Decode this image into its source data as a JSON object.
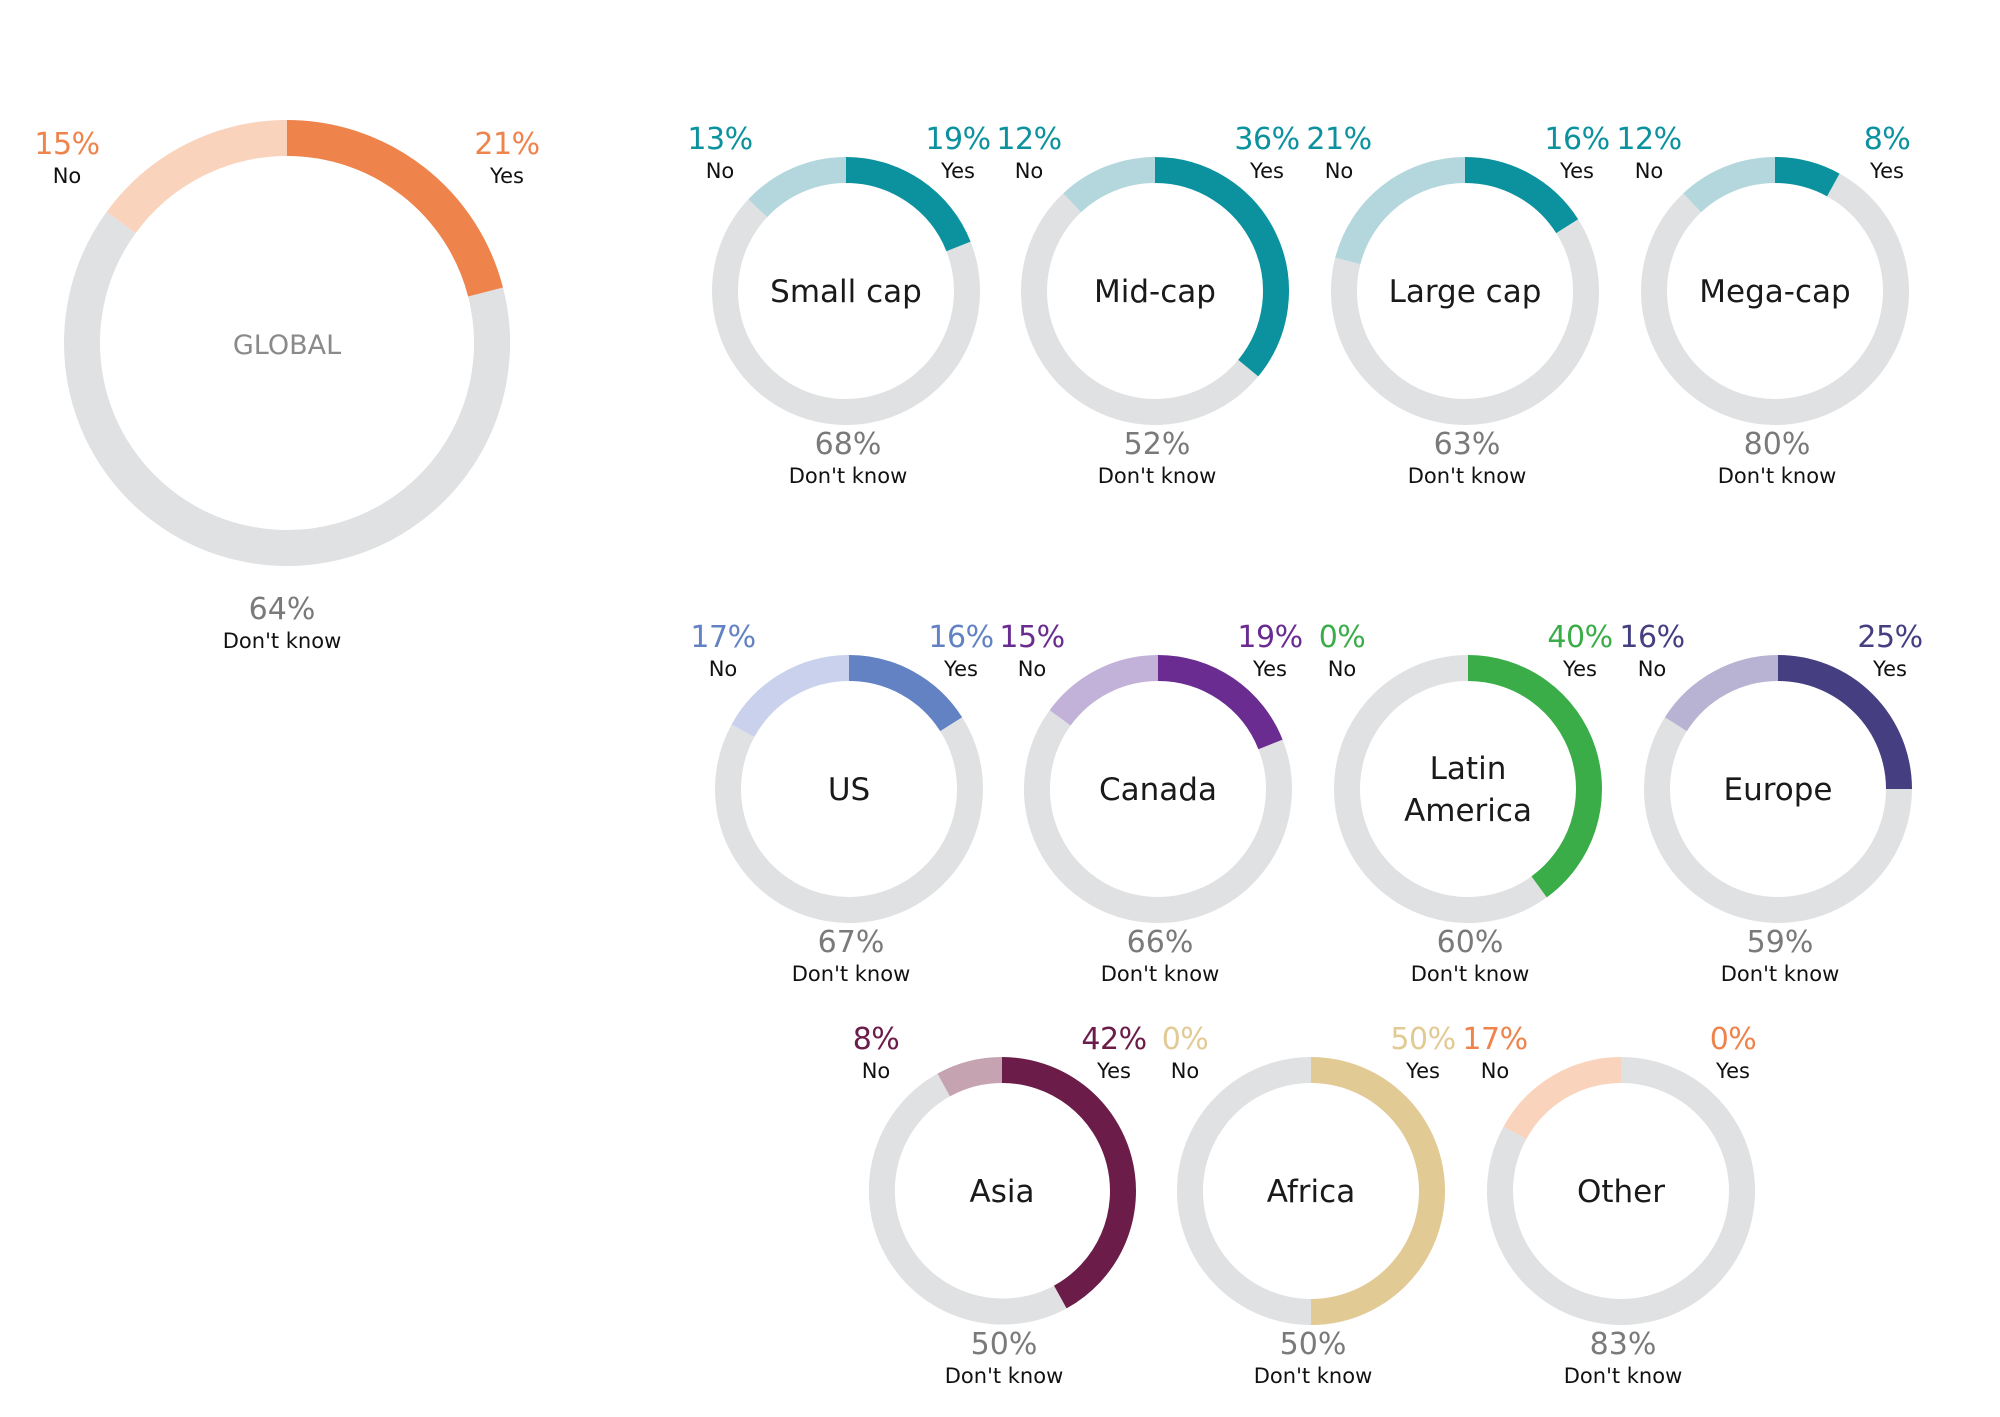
{
  "chart_data": [
    {
      "type": "donut",
      "name": "GLOBAL",
      "title_lines": [
        "GLOBAL"
      ],
      "values": {
        "yes": 21,
        "no": 15,
        "dont_know": 64
      },
      "labels": {
        "yes": "Yes",
        "no": "No",
        "dont_know": "Don't know"
      },
      "colors": {
        "yes": "#ee844c",
        "no": "#fad3bd",
        "dont_know": "#e0e1e2",
        "text": "#ee844c"
      }
    },
    {
      "type": "donut",
      "name": "Small cap",
      "title_lines": [
        "Small cap"
      ],
      "values": {
        "yes": 19,
        "no": 13,
        "dont_know": 68
      },
      "labels": {
        "yes": "Yes",
        "no": "No",
        "dont_know": "Don't know"
      },
      "colors": {
        "yes": "#0b929e",
        "no": "#b3d7dd",
        "dont_know": "#e0e1e2",
        "text": "#0b929e"
      }
    },
    {
      "type": "donut",
      "name": "Mid-cap",
      "title_lines": [
        "Mid-cap"
      ],
      "values": {
        "yes": 36,
        "no": 12,
        "dont_know": 52
      },
      "labels": {
        "yes": "Yes",
        "no": "No",
        "dont_know": "Don't know"
      },
      "colors": {
        "yes": "#0b929e",
        "no": "#b3d7dd",
        "dont_know": "#e0e1e2",
        "text": "#0b929e"
      }
    },
    {
      "type": "donut",
      "name": "Large cap",
      "title_lines": [
        "Large cap"
      ],
      "values": {
        "yes": 16,
        "no": 21,
        "dont_know": 63
      },
      "labels": {
        "yes": "Yes",
        "no": "No",
        "dont_know": "Don't know"
      },
      "colors": {
        "yes": "#0b929e",
        "no": "#b3d7dd",
        "dont_know": "#e0e1e2",
        "text": "#0b929e"
      }
    },
    {
      "type": "donut",
      "name": "Mega-cap",
      "title_lines": [
        "Mega-cap"
      ],
      "values": {
        "yes": 8,
        "no": 12,
        "dont_know": 80
      },
      "labels": {
        "yes": "Yes",
        "no": "No",
        "dont_know": "Don't know"
      },
      "colors": {
        "yes": "#0b929e",
        "no": "#b3d7dd",
        "dont_know": "#e0e1e2",
        "text": "#0b929e"
      }
    },
    {
      "type": "donut",
      "name": "US",
      "title_lines": [
        "US"
      ],
      "values": {
        "yes": 16,
        "no": 17,
        "dont_know": 67
      },
      "labels": {
        "yes": "Yes",
        "no": "No",
        "dont_know": "Don't know"
      },
      "colors": {
        "yes": "#6282c4",
        "no": "#c9d1ec",
        "dont_know": "#e0e1e2",
        "text": "#6282c4"
      }
    },
    {
      "type": "donut",
      "name": "Canada",
      "title_lines": [
        "Canada"
      ],
      "values": {
        "yes": 19,
        "no": 15,
        "dont_know": 66
      },
      "labels": {
        "yes": "Yes",
        "no": "No",
        "dont_know": "Don't know"
      },
      "colors": {
        "yes": "#6a2c91",
        "no": "#c2b1d8",
        "dont_know": "#e0e1e2",
        "text": "#6a2c91"
      }
    },
    {
      "type": "donut",
      "name": "Latin America",
      "title_lines": [
        "Latin",
        "America"
      ],
      "values": {
        "yes": 40,
        "no": 0,
        "dont_know": 60
      },
      "labels": {
        "yes": "Yes",
        "no": "No",
        "dont_know": "Don't know"
      },
      "colors": {
        "yes": "#3aad48",
        "no": "#c4e5c5",
        "dont_know": "#e0e1e2",
        "text": "#3aad48"
      }
    },
    {
      "type": "donut",
      "name": "Europe",
      "title_lines": [
        "Europe"
      ],
      "values": {
        "yes": 25,
        "no": 16,
        "dont_know": 59
      },
      "labels": {
        "yes": "Yes",
        "no": "No",
        "dont_know": "Don't know"
      },
      "colors": {
        "yes": "#453f82",
        "no": "#b8b3d3",
        "dont_know": "#e0e1e2",
        "text": "#453f82"
      }
    },
    {
      "type": "donut",
      "name": "Asia",
      "title_lines": [
        "Asia"
      ],
      "values": {
        "yes": 42,
        "no": 8,
        "dont_know": 50
      },
      "labels": {
        "yes": "Yes",
        "no": "No",
        "dont_know": "Don't know"
      },
      "colors": {
        "yes": "#6b1c48",
        "no": "#c5a3b1",
        "dont_know": "#e0e1e2",
        "text": "#6b1c48"
      }
    },
    {
      "type": "donut",
      "name": "Africa",
      "title_lines": [
        "Africa"
      ],
      "values": {
        "yes": 50,
        "no": 0,
        "dont_know": 50
      },
      "labels": {
        "yes": "Yes",
        "no": "No",
        "dont_know": "Don't know"
      },
      "colors": {
        "yes": "#e2ca95",
        "no": "#f1e6cd",
        "dont_know": "#e0e1e2",
        "text": "#e2ca95"
      }
    },
    {
      "type": "donut",
      "name": "Other",
      "title_lines": [
        "Other"
      ],
      "values": {
        "yes": 0,
        "no": 17,
        "dont_know": 83
      },
      "labels": {
        "yes": "Yes",
        "no": "No",
        "dont_know": "Don't know"
      },
      "colors": {
        "yes": "#ee844c",
        "no": "#fad3bd",
        "dont_know": "#e0e1e2",
        "text": "#ee844c"
      }
    }
  ]
}
